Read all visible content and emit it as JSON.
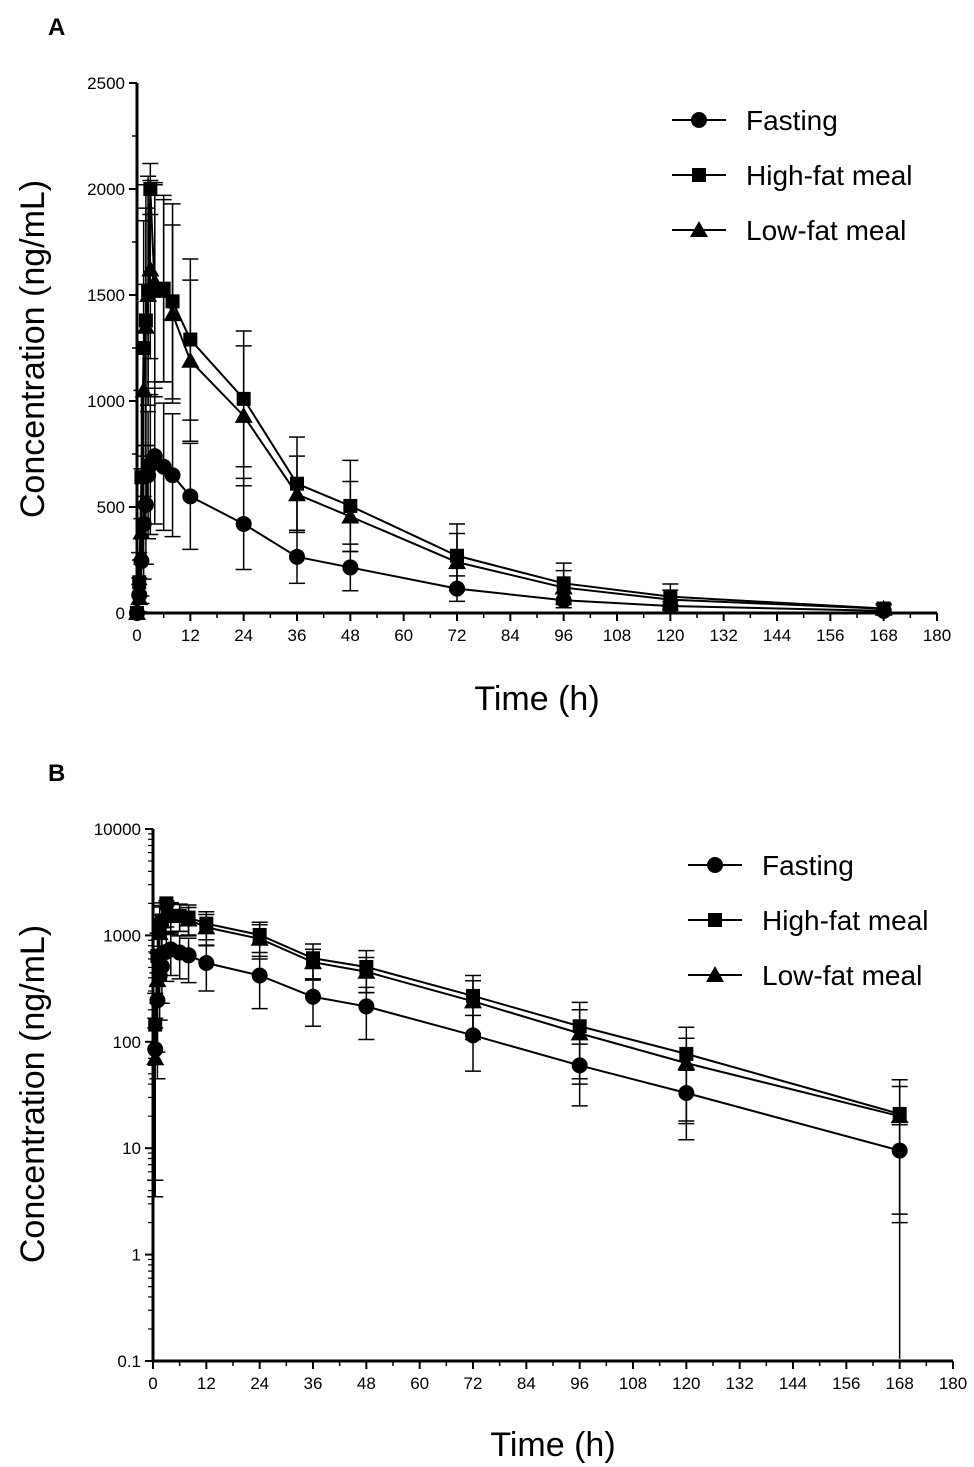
{
  "chart_data": [
    {
      "panel_label": "A",
      "type": "line",
      "scale": "linear",
      "xlabel": "Time (h)",
      "ylabel": "Concentration (ng/mL)",
      "xlim": [
        0,
        180
      ],
      "ylim": [
        0,
        2500
      ],
      "x_ticks": [
        "0",
        "12",
        "24",
        "36",
        "48",
        "60",
        "72",
        "84",
        "96",
        "108",
        "120",
        "132",
        "144",
        "156",
        "168",
        "180"
      ],
      "y_ticks": [
        "0",
        "500",
        "1000",
        "1500",
        "2000",
        "2500"
      ],
      "grid": false,
      "legend_position": "top-right",
      "x": [
        0,
        0.5,
        1,
        1.5,
        2,
        2.5,
        3,
        4,
        6,
        8,
        12,
        24,
        36,
        48,
        72,
        96,
        120,
        168
      ],
      "series": [
        {
          "name": "Fasting",
          "marker": "circle",
          "values": [
            0,
            85,
            245,
            420,
            510,
            650,
            700,
            740,
            690,
            650,
            550,
            420,
            265,
            215,
            115,
            60,
            33,
            10
          ],
          "errors": [
            0,
            80,
            200,
            260,
            280,
            300,
            330,
            320,
            300,
            290,
            250,
            215,
            125,
            110,
            60,
            35,
            21,
            7
          ]
        },
        {
          "name": "High-fat meal",
          "marker": "square",
          "values": [
            0,
            145,
            640,
            1250,
            1380,
            1520,
            2000,
            1520,
            1530,
            1470,
            1290,
            1010,
            610,
            505,
            270,
            140,
            77,
            21
          ],
          "errors": [
            0,
            140,
            410,
            600,
            640,
            540,
            120,
            500,
            440,
            460,
            380,
            320,
            220,
            215,
            150,
            95,
            60,
            23
          ]
        },
        {
          "name": "Low-fat meal",
          "marker": "triangle",
          "values": [
            0,
            70,
            380,
            1050,
            1350,
            1500,
            1620,
            1560,
            1520,
            1410,
            1190,
            930,
            560,
            455,
            240,
            120,
            63,
            20
          ],
          "errors": [
            0,
            65,
            300,
            500,
            560,
            520,
            420,
            470,
            430,
            420,
            380,
            330,
            180,
            165,
            135,
            80,
            45,
            18
          ]
        }
      ]
    },
    {
      "panel_label": "B",
      "type": "line",
      "scale": "log",
      "xlabel": "Time (h)",
      "ylabel": "Concentration (ng/mL)",
      "xlim": [
        0,
        180
      ],
      "ylim": [
        0.1,
        10000
      ],
      "x_ticks": [
        "0",
        "12",
        "24",
        "36",
        "48",
        "60",
        "72",
        "84",
        "96",
        "108",
        "120",
        "132",
        "144",
        "156",
        "168",
        "180"
      ],
      "y_ticks": [
        "0.1",
        "1",
        "10",
        "100",
        "1000",
        "10000"
      ],
      "grid": false,
      "legend_position": "top-right",
      "x": [
        0.5,
        1,
        1.5,
        2,
        3,
        4,
        6,
        8,
        12,
        24,
        36,
        48,
        72,
        96,
        120,
        168
      ],
      "series": [
        {
          "name": "Fasting",
          "marker": "circle",
          "values": [
            85,
            245,
            420,
            510,
            700,
            740,
            690,
            650,
            550,
            420,
            265,
            215,
            115,
            60,
            33,
            9.5
          ],
          "errors": [
            81.5,
            200,
            260,
            280,
            330,
            320,
            300,
            290,
            250,
            215,
            125,
            110,
            62,
            35,
            21,
            7.1
          ]
        },
        {
          "name": "High-fat meal",
          "marker": "square",
          "values": [
            145,
            640,
            1250,
            1380,
            2000,
            1520,
            1530,
            1470,
            1290,
            1010,
            610,
            505,
            270,
            140,
            77,
            21
          ],
          "errors": [
            140,
            410,
            600,
            640,
            120,
            500,
            440,
            460,
            380,
            320,
            220,
            215,
            150,
            95,
            60,
            23
          ]
        },
        {
          "name": "Low-fat meal",
          "marker": "triangle",
          "values": [
            70,
            380,
            1050,
            1350,
            1620,
            1560,
            1520,
            1410,
            1190,
            930,
            560,
            455,
            240,
            120,
            63,
            20
          ],
          "errors": [
            65,
            300,
            500,
            560,
            420,
            470,
            430,
            420,
            380,
            330,
            180,
            165,
            135,
            80,
            45,
            18
          ]
        }
      ]
    }
  ]
}
